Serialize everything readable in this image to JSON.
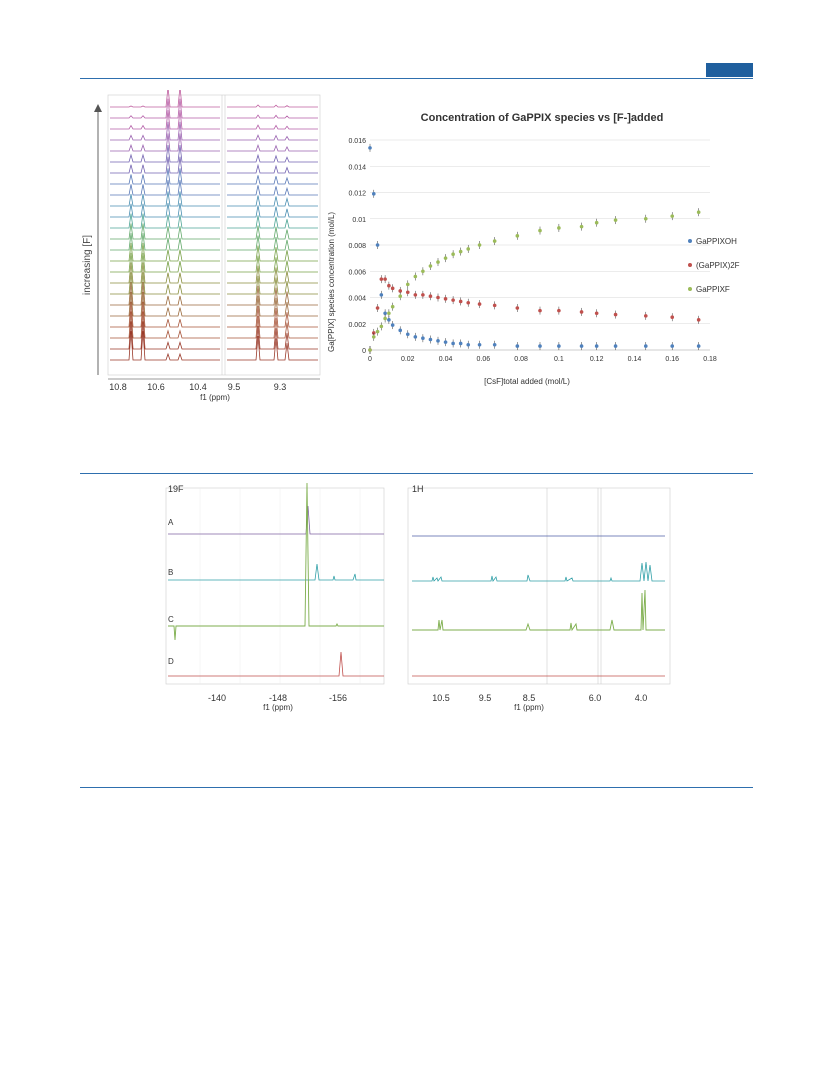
{
  "fig1": {
    "nmr": {
      "axis_label": "increasing [F]",
      "ticks_left": [
        "10.8",
        "10.6",
        "10.4"
      ],
      "ticks_right": [
        "9.5",
        "9.3"
      ],
      "xlabel": "f1 (ppm)",
      "trace_count": 24
    },
    "chart_data": {
      "type": "scatter",
      "title": "Concentration of GaPPIX species vs [F-]added",
      "xlabel": "[CsF]total added (mol/L)",
      "ylabel": "Ga[PPIX] species concentration (mol/L)",
      "xlim": [
        0,
        0.18
      ],
      "ylim": [
        0,
        0.016
      ],
      "xticks": [
        "0",
        "0.02",
        "0.04",
        "0.06",
        "0.08",
        "0.1",
        "0.12",
        "0.14",
        "0.16",
        "0.18"
      ],
      "yticks": [
        "0",
        "0.002",
        "0.004",
        "0.006",
        "0.008",
        "0.01",
        "0.012",
        "0.014",
        "0.016"
      ],
      "grid": true,
      "error_bars": true,
      "legend_position": "right",
      "series": [
        {
          "name": "GaPPIXOH",
          "color": "#4f81bd",
          "x": [
            0,
            0.002,
            0.004,
            0.006,
            0.008,
            0.01,
            0.012,
            0.016,
            0.02,
            0.024,
            0.028,
            0.032,
            0.036,
            0.04,
            0.044,
            0.048,
            0.052,
            0.058,
            0.066,
            0.078,
            0.09,
            0.1,
            0.112,
            0.12,
            0.13,
            0.146,
            0.16,
            0.174
          ],
          "y": [
            0.0154,
            0.0119,
            0.008,
            0.0042,
            0.0028,
            0.0023,
            0.0019,
            0.0015,
            0.0012,
            0.001,
            0.0009,
            0.0008,
            0.0007,
            0.0006,
            0.0005,
            0.0005,
            0.0004,
            0.0004,
            0.0004,
            0.0003,
            0.0003,
            0.0003,
            0.0003,
            0.0003,
            0.0003,
            0.0003,
            0.0003,
            0.0003
          ]
        },
        {
          "name": "(GaPPIX)2F",
          "color": "#c0504d",
          "x": [
            0,
            0.002,
            0.004,
            0.006,
            0.008,
            0.01,
            0.012,
            0.016,
            0.02,
            0.024,
            0.028,
            0.032,
            0.036,
            0.04,
            0.044,
            0.048,
            0.052,
            0.058,
            0.066,
            0.078,
            0.09,
            0.1,
            0.112,
            0.12,
            0.13,
            0.146,
            0.16,
            0.174
          ],
          "y": [
            0,
            0.0013,
            0.0032,
            0.0054,
            0.0054,
            0.0049,
            0.0047,
            0.0045,
            0.0044,
            0.0042,
            0.0042,
            0.0041,
            0.004,
            0.0039,
            0.0038,
            0.0037,
            0.0036,
            0.0035,
            0.0034,
            0.0032,
            0.003,
            0.003,
            0.0029,
            0.0028,
            0.0027,
            0.0026,
            0.0025,
            0.0023
          ]
        },
        {
          "name": "GaPPIXF",
          "color": "#9bbb59",
          "x": [
            0,
            0.002,
            0.004,
            0.006,
            0.008,
            0.01,
            0.012,
            0.016,
            0.02,
            0.024,
            0.028,
            0.032,
            0.036,
            0.04,
            0.044,
            0.048,
            0.052,
            0.058,
            0.066,
            0.078,
            0.09,
            0.1,
            0.112,
            0.12,
            0.13,
            0.146,
            0.16,
            0.174
          ],
          "y": [
            0,
            0.001,
            0.0014,
            0.0018,
            0.0024,
            0.0028,
            0.0033,
            0.0041,
            0.005,
            0.0056,
            0.006,
            0.0064,
            0.0067,
            0.007,
            0.0073,
            0.0075,
            0.0077,
            0.008,
            0.0083,
            0.0087,
            0.0091,
            0.0093,
            0.0094,
            0.0097,
            0.0099,
            0.01,
            0.0102,
            0.0105
          ]
        }
      ]
    }
  },
  "fig2": {
    "f19": {
      "label": "19F",
      "labels": [
        "A",
        "B",
        "C",
        "D"
      ],
      "ticks": [
        "-140",
        "-148",
        "-156"
      ],
      "xlabel": "f1 (ppm)"
    },
    "h1": {
      "label": "1H",
      "ticks": [
        "10.5",
        "9.5",
        "8.5",
        "6.0",
        "4.0"
      ],
      "xlabel": "f1 (ppm)"
    }
  },
  "colors": {
    "rule": "#2e6fae",
    "tab": "#1f5f9e"
  }
}
